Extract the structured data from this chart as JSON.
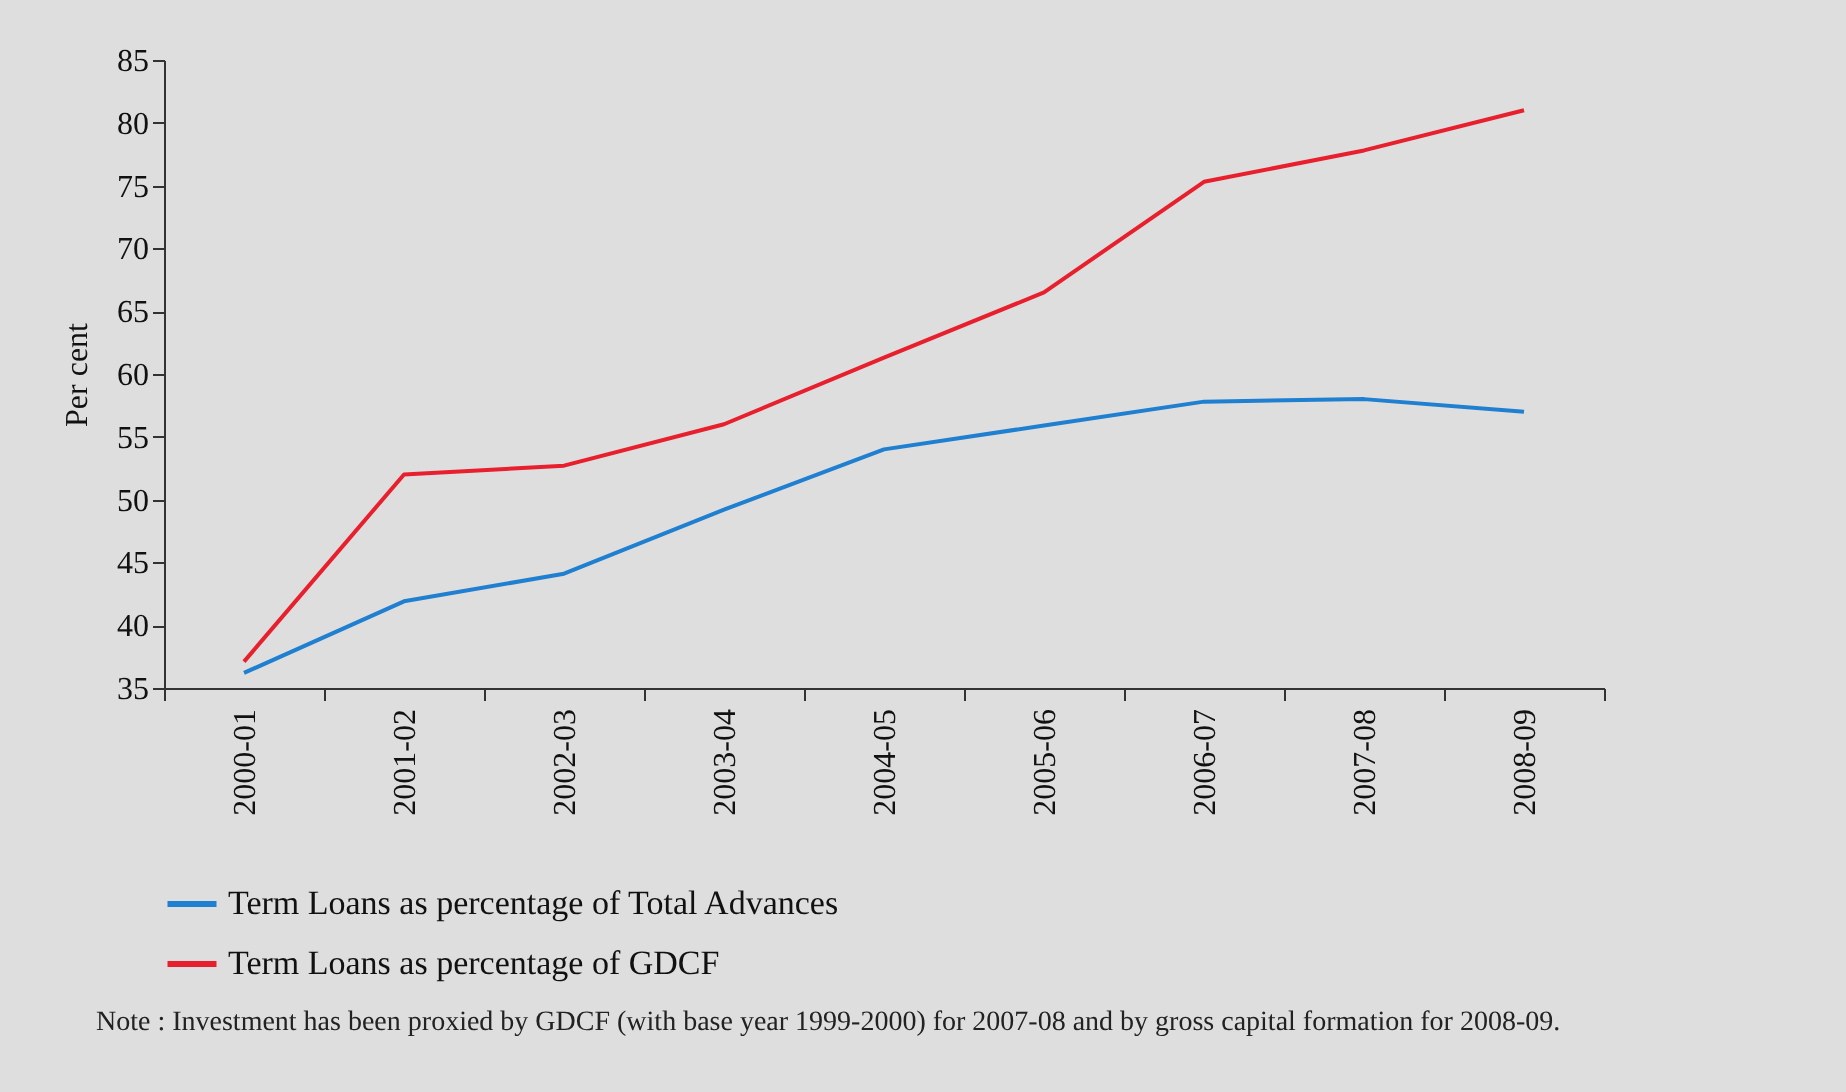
{
  "chart_data": {
    "type": "line",
    "ylabel": "Per cent",
    "categories": [
      "2000-01",
      "2001-02",
      "2002-03",
      "2003-04",
      "2004-05",
      "2005-06",
      "2006-07",
      "2007-08",
      "2008-09"
    ],
    "series": [
      {
        "name": "Term Loans as percentage of Total Advances",
        "color": "#1f7fd0",
        "values": [
          36.2,
          41.9,
          44.1,
          49.2,
          54.0,
          55.9,
          57.8,
          58.0,
          57.0
        ]
      },
      {
        "name": "Term Loans as percentage of GDCF",
        "color": "#e8202e",
        "values": [
          37.1,
          52.0,
          52.7,
          56.0,
          61.3,
          66.5,
          75.3,
          77.8,
          81.0
        ]
      }
    ],
    "ylim": [
      35,
      85
    ],
    "yticks": [
      35,
      40,
      45,
      50,
      55,
      60,
      65,
      70,
      75,
      80,
      85
    ],
    "legend": "bottom",
    "marker": "none",
    "line_style": "solid",
    "annotations": [
      "Note : Investment has been proxied by GDCF (with base year 1999-2000) for 2007-08 and by gross capital formation for 2008-09."
    ]
  }
}
